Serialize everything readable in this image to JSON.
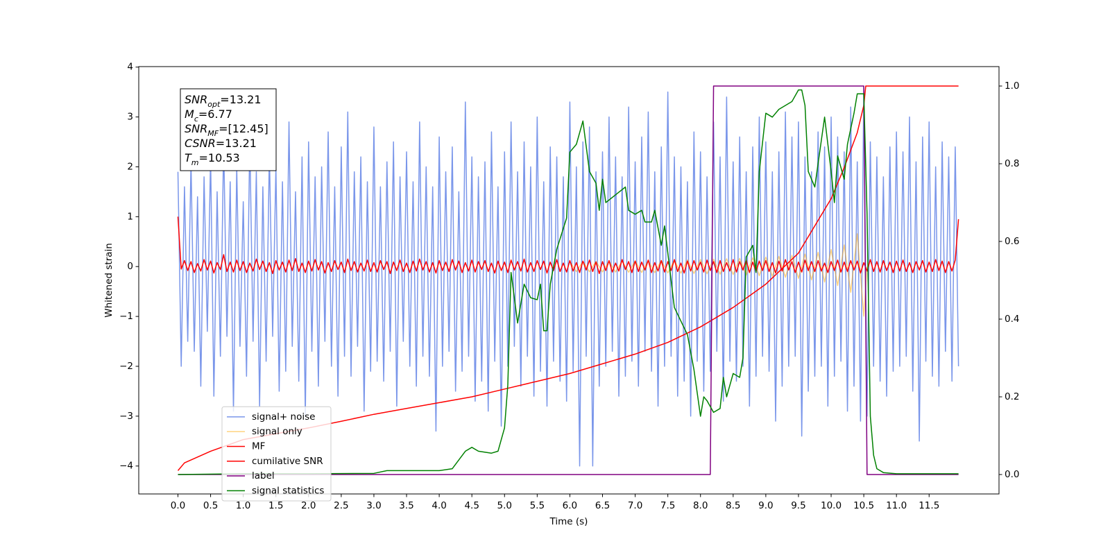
{
  "chart_data": {
    "type": "line",
    "xlabel": "Time (s)",
    "ylabel": "Whitened strain",
    "xlim": [
      -0.6,
      12.57
    ],
    "ylim": [
      -4.56,
      4.01
    ],
    "y2lim": [
      -0.05,
      1.05
    ],
    "xticks": [
      {
        "value": 0,
        "label": "0.0"
      },
      0.5,
      {
        "value": 1,
        "label": "1.0"
      },
      1.5,
      {
        "value": 2,
        "label": "2.0"
      },
      2.5,
      {
        "value": 3,
        "label": "3.0"
      },
      3.5,
      {
        "value": 4,
        "label": "4.0"
      },
      4.5,
      {
        "value": 5,
        "label": "5.0"
      },
      5.5,
      {
        "value": 6,
        "label": "6.0"
      },
      6.5,
      {
        "value": 7,
        "label": "7.0"
      },
      7.5,
      {
        "value": 8,
        "label": "8.0"
      },
      8.5,
      {
        "value": 9,
        "label": "9.0"
      },
      9.5,
      {
        "value": 10,
        "label": "10.0"
      },
      10.5,
      {
        "value": 11,
        "label": "11.0"
      },
      11.5
    ],
    "yticks": [
      {
        "value": -4,
        "label": "−4"
      },
      {
        "value": -3,
        "label": "−3"
      },
      {
        "value": -2,
        "label": "−2"
      },
      {
        "value": -1,
        "label": "−1"
      },
      0,
      1,
      2,
      3,
      4
    ],
    "y2ticks": [
      {
        "value": 0,
        "label": "0.0"
      },
      0.2,
      0.4,
      0.6,
      0.8,
      {
        "value": 1,
        "label": "1.0"
      }
    ],
    "legend": "lower left",
    "grid": false,
    "stats_box": [
      {
        "symbol": "SNR",
        "subscript": "opt",
        "text": "=13.21"
      },
      {
        "symbol": "M",
        "subscript": "c",
        "text": "=6.77"
      },
      {
        "symbol": "SNR",
        "subscript": "MF",
        "text": "=[12.45]"
      },
      {
        "symbol": "CSNR",
        "text": "=13.21"
      },
      {
        "symbol": "T",
        "subscript": "m",
        "text": "=10.53"
      }
    ],
    "x": [
      0,
      0.05,
      0.1,
      0.15,
      0.2,
      0.25,
      0.3,
      0.35,
      0.4,
      0.45,
      0.5,
      0.55,
      0.6,
      0.65,
      0.7,
      0.75,
      0.8,
      0.85,
      0.9,
      0.95,
      1,
      1.05,
      1.1,
      1.15,
      1.2,
      1.25,
      1.3,
      1.35,
      1.4,
      1.45,
      1.5,
      1.55,
      1.6,
      1.65,
      1.7,
      1.75,
      1.8,
      1.85,
      1.9,
      1.95,
      2,
      2.05,
      2.1,
      2.15,
      2.2,
      2.25,
      2.3,
      2.35,
      2.4,
      2.45,
      2.5,
      2.55,
      2.6,
      2.65,
      2.7,
      2.75,
      2.8,
      2.85,
      2.9,
      2.95,
      3,
      3.05,
      3.1,
      3.15,
      3.2,
      3.25,
      3.3,
      3.35,
      3.4,
      3.45,
      3.5,
      3.55,
      3.6,
      3.65,
      3.7,
      3.75,
      3.8,
      3.85,
      3.9,
      3.95,
      4,
      4.05,
      4.1,
      4.15,
      4.2,
      4.25,
      4.3,
      4.35,
      4.4,
      4.45,
      4.5,
      4.55,
      4.6,
      4.65,
      4.7,
      4.75,
      4.8,
      4.85,
      4.9,
      4.95,
      5,
      5.05,
      5.1,
      5.15,
      5.2,
      5.25,
      5.3,
      5.35,
      5.4,
      5.45,
      5.5,
      5.55,
      5.6,
      5.65,
      5.7,
      5.75,
      5.8,
      5.85,
      5.9,
      5.95,
      6,
      6.05,
      6.1,
      6.15,
      6.2,
      6.25,
      6.3,
      6.35,
      6.4,
      6.45,
      6.5,
      6.55,
      6.6,
      6.65,
      6.7,
      6.75,
      6.8,
      6.85,
      6.9,
      6.95,
      7,
      7.05,
      7.1,
      7.15,
      7.2,
      7.25,
      7.3,
      7.35,
      7.4,
      7.45,
      7.5,
      7.55,
      7.6,
      7.65,
      7.7,
      7.75,
      7.8,
      7.85,
      7.9,
      7.95,
      8,
      8.05,
      8.1,
      8.15,
      8.2,
      8.25,
      8.3,
      8.35,
      8.4,
      8.45,
      8.5,
      8.55,
      8.6,
      8.65,
      8.7,
      8.75,
      8.8,
      8.85,
      8.9,
      8.95,
      9,
      9.05,
      9.1,
      9.15,
      9.2,
      9.25,
      9.3,
      9.35,
      9.4,
      9.45,
      9.5,
      9.55,
      9.6,
      9.65,
      9.7,
      9.75,
      9.8,
      9.85,
      9.9,
      9.95,
      10,
      10.05,
      10.1,
      10.15,
      10.2,
      10.25,
      10.3,
      10.35,
      10.4,
      10.45,
      10.5,
      10.55,
      10.6,
      10.65,
      10.7,
      10.75,
      10.8,
      10.85,
      10.9,
      10.95,
      11,
      11.05,
      11.1,
      11.15,
      11.2,
      11.25,
      11.3,
      11.35,
      11.4,
      11.45,
      11.5,
      11.55,
      11.6,
      11.65,
      11.7,
      11.75,
      11.8,
      11.85,
      11.9,
      11.95
    ],
    "series": [
      {
        "name": "signal+ noise",
        "color": "#4169e1",
        "alpha": 0.7,
        "axis": "y",
        "values": [
          1.9,
          -2.0,
          1.6,
          -1.5,
          2.1,
          -1.7,
          1.4,
          -2.4,
          1.8,
          -1.3,
          2.2,
          -2.6,
          1.5,
          -1.8,
          2.5,
          -1.4,
          1.7,
          -2.9,
          2.0,
          -1.6,
          1.3,
          -2.2,
          2.6,
          -1.5,
          1.9,
          -2.8,
          1.6,
          -1.9,
          2.3,
          -1.4,
          2.0,
          -2.5,
          1.7,
          -2.1,
          2.9,
          -1.6,
          1.5,
          -2.3,
          2.2,
          -3.0,
          2.5,
          -1.7,
          1.8,
          -2.4,
          2.0,
          -1.5,
          2.7,
          -2.0,
          1.6,
          -2.6,
          2.4,
          -1.8,
          3.1,
          -2.2,
          1.9,
          -1.6,
          2.2,
          -2.9,
          1.7,
          -2.1,
          2.8,
          -1.9,
          1.6,
          -2.3,
          2.1,
          -1.7,
          2.5,
          -2.8,
          1.8,
          -1.5,
          2.3,
          -2.0,
          1.7,
          -2.4,
          2.9,
          -1.8,
          2.0,
          -2.2,
          1.6,
          -3.3,
          2.6,
          -2.0,
          1.9,
          -1.7,
          2.4,
          -2.5,
          1.5,
          -2.1,
          3.3,
          -1.8,
          2.2,
          -2.7,
          1.8,
          -2.3,
          2.1,
          -2.9,
          2.7,
          -1.9,
          1.6,
          -3.2,
          2.3,
          -2.0,
          2.9,
          -1.6,
          1.9,
          -2.4,
          2.5,
          -1.8,
          2.0,
          -2.6,
          3.0,
          -2.1,
          1.7,
          -2.8,
          2.4,
          -1.9,
          2.2,
          -2.3,
          1.8,
          -2.7,
          3.3,
          -2.1,
          2.0,
          -4.0,
          2.5,
          -1.8,
          2.8,
          -4.0,
          1.9,
          -2.4,
          2.3,
          -2.0,
          3.0,
          -1.7,
          2.2,
          -2.6,
          1.8,
          -2.2,
          3.2,
          -1.9,
          2.1,
          -2.4,
          2.6,
          -1.7,
          3.1,
          -2.1,
          1.9,
          -2.8,
          2.4,
          -2.0,
          3.5,
          -1.8,
          2.2,
          -2.6,
          2.0,
          -2.3,
          1.7,
          -3.0,
          2.7,
          -1.9,
          2.3,
          -2.5,
          1.8,
          -2.1,
          2.9,
          -1.7,
          2.2,
          -2.7,
          3.4,
          -1.9,
          2.1,
          -2.3,
          2.6,
          -2.0,
          1.9,
          -2.8,
          2.4,
          -2.2,
          3.0,
          -1.8,
          2.5,
          -2.1,
          1.9,
          -3.1,
          2.3,
          -2.4,
          3.1,
          -2.0,
          2.6,
          -1.8,
          2.9,
          -3.4,
          2.2,
          -2.5,
          1.9,
          -2.2,
          2.7,
          -2.0,
          2.4,
          -2.8,
          3.0,
          -2.2,
          2.6,
          -1.9,
          2.3,
          -2.9,
          3.2,
          -2.4,
          2.1,
          -3.1,
          3.6,
          -3.0,
          2.5,
          -2.0,
          2.2,
          -2.3,
          1.8,
          -2.6,
          2.4,
          -2.1,
          2.7,
          -2.0,
          2.3,
          -1.8,
          3.0,
          -2.5,
          2.1,
          -3.5,
          2.6,
          -1.9,
          2.9,
          -2.2,
          2.0,
          -2.4,
          2.5,
          -1.7,
          2.2,
          -2.3,
          2.4,
          -2.0
        ]
      },
      {
        "name": "signal only",
        "color": "#ffa500",
        "alpha": 0.5,
        "axis": "y",
        "x": [
          6,
          6.1,
          6.2,
          6.3,
          6.4,
          6.5,
          6.6,
          6.7,
          6.8,
          6.9,
          7,
          7.1,
          7.2,
          7.3,
          7.4,
          7.5,
          7.6,
          7.7,
          7.8,
          7.9,
          8,
          8.1,
          8.2,
          8.3,
          8.4,
          8.5,
          8.6,
          8.7,
          8.8,
          8.9,
          9,
          9.1,
          9.2,
          9.3,
          9.4,
          9.5,
          9.6,
          9.7,
          9.8,
          9.9,
          10,
          10.1,
          10.2,
          10.3,
          10.4,
          10.5,
          10.55
        ],
        "values": [
          0.1,
          -0.101,
          0.103,
          -0.104,
          0.106,
          -0.107,
          0.109,
          -0.11,
          0.112,
          -0.114,
          0.116,
          -0.118,
          0.12,
          -0.122,
          0.124,
          -0.127,
          0.129,
          -0.132,
          0.135,
          -0.138,
          0.141,
          -0.144,
          0.148,
          -0.152,
          0.156,
          -0.16,
          0.165,
          -0.17,
          0.176,
          -0.182,
          0.189,
          -0.196,
          0.204,
          -0.214,
          0.224,
          -0.236,
          0.25,
          -0.266,
          0.286,
          -0.31,
          0.34,
          -0.379,
          0.433,
          -0.515,
          0.657,
          -0.995,
          0
        ]
      },
      {
        "name": "MF",
        "color": "red",
        "axis": "y",
        "values": [
          1.0,
          -0.05,
          0.12,
          -0.08,
          0.1,
          -0.12,
          0.06,
          -0.09,
          0.14,
          -0.07,
          0.11,
          -0.13,
          0.08,
          -0.06,
          0.24,
          -0.1,
          0.09,
          -0.11,
          0.13,
          -0.08,
          0.1,
          -0.12,
          0.07,
          -0.09,
          0.15,
          -0.06,
          0.11,
          -0.1,
          0.08,
          -0.14,
          0.12,
          -0.07,
          0.09,
          -0.11,
          0.13,
          -0.08,
          0.16,
          -0.1,
          0.07,
          -0.12,
          0.11,
          -0.09,
          0.14,
          -0.07,
          0.1,
          -0.13,
          0.08,
          -0.1,
          0.12,
          -0.06,
          0.09,
          -0.12,
          0.15,
          -0.08,
          0.1,
          -0.11,
          0.07,
          -0.09,
          0.13,
          -0.1,
          0.08,
          -0.11,
          0.12,
          -0.06,
          0.1,
          -0.14,
          0.09,
          -0.08,
          0.13,
          -0.1,
          0.07,
          -0.12,
          0.11,
          -0.09,
          0.15,
          -0.07,
          0.1,
          -0.11,
          0.08,
          -0.13,
          0.12,
          -0.08,
          0.09,
          -0.1,
          0.14,
          -0.07,
          0.11,
          -0.12,
          0.08,
          -0.09,
          0.13,
          -0.11,
          0.1,
          -0.06,
          0.12,
          -0.1,
          0.07,
          -0.13,
          0.11,
          -0.08,
          0.09,
          -0.12,
          0.13,
          -0.07,
          0.1,
          -0.09,
          0.15,
          -0.11,
          0.08,
          -0.1,
          0.12,
          -0.06,
          0.11,
          -0.13,
          0.09,
          -0.08,
          0.14,
          -0.1,
          0.07,
          -0.11,
          0.12,
          -0.09,
          0.08,
          -0.12,
          0.11,
          -0.07,
          0.13,
          -0.1,
          0.09,
          -0.14,
          0.1,
          -0.08,
          0.12,
          -0.11,
          0.07,
          -0.09,
          0.14,
          -0.06,
          0.1,
          -0.12,
          0.11,
          -0.1,
          0.09,
          -0.07,
          0.13,
          -0.12,
          0.08,
          -0.09,
          0.12,
          -0.11,
          0.1,
          -0.08,
          0.14,
          -0.1,
          0.07,
          -0.13,
          0.11,
          -0.09,
          0.12,
          -0.07,
          0.09,
          -0.11,
          0.13,
          -0.08,
          0.1,
          -0.12,
          0.12,
          -0.1,
          0.08,
          -0.09,
          0.14,
          -0.11,
          0.1,
          -0.07,
          0.13,
          -0.12,
          0.09,
          -0.1,
          0.11,
          -0.08,
          0.12,
          -0.1,
          0.08,
          -0.13,
          0.11,
          -0.09,
          0.14,
          -0.07,
          0.1,
          -0.12,
          0.09,
          -0.11,
          0.13,
          -0.08,
          0.1,
          -0.1,
          0.12,
          -0.09,
          0.07,
          -0.12,
          0.1,
          -0.08,
          0.13,
          -0.11,
          0.09,
          -0.1,
          0.12,
          -0.07,
          0.11,
          -0.13,
          0.08,
          -0.09,
          0.14,
          -0.1,
          0.1,
          -0.11,
          0.12,
          -0.08,
          0.09,
          -0.12,
          0.11,
          -0.09,
          0.13,
          -0.1,
          0.08,
          -0.12,
          0.1,
          -0.07,
          0.12,
          -0.11,
          0.09,
          -0.1,
          0.14,
          -0.08,
          0.11,
          -0.12,
          0.1,
          -0.09,
          0.13,
          0.95
        ]
      },
      {
        "name": "cumilative SNR",
        "color": "red",
        "axis": "y2",
        "x": [
          0,
          0.1,
          0.5,
          1,
          1.5,
          2,
          2.5,
          3,
          3.5,
          4,
          4.5,
          5,
          5.5,
          6,
          6.5,
          7,
          7.5,
          8,
          8.5,
          9,
          9.5,
          10,
          10.2,
          10.4,
          10.5,
          10.53,
          11.95
        ],
        "values": [
          0.01,
          0.03,
          0.06,
          0.09,
          0.105,
          0.12,
          0.137,
          0.155,
          0.17,
          0.185,
          0.2,
          0.22,
          0.24,
          0.26,
          0.285,
          0.31,
          0.34,
          0.38,
          0.43,
          0.49,
          0.57,
          0.71,
          0.79,
          0.88,
          0.95,
          1.0,
          1.0
        ]
      },
      {
        "name": "label",
        "color": "purple",
        "axis": "y2",
        "x": [
          0,
          8.15,
          8.2,
          10.5,
          10.55,
          11.95
        ],
        "values": [
          0,
          0,
          1,
          1,
          0,
          0
        ]
      },
      {
        "name": "signal statistics",
        "color": "green",
        "axis": "y2",
        "x": [
          0,
          1,
          2,
          3,
          3.2,
          3.5,
          4,
          4.2,
          4.4,
          4.5,
          4.6,
          4.8,
          4.9,
          5.0,
          5.05,
          5.1,
          5.2,
          5.3,
          5.4,
          5.5,
          5.55,
          5.6,
          5.65,
          5.7,
          5.8,
          5.95,
          6.0,
          6.1,
          6.2,
          6.3,
          6.4,
          6.45,
          6.5,
          6.55,
          6.7,
          6.85,
          6.9,
          7.0,
          7.1,
          7.15,
          7.25,
          7.3,
          7.4,
          7.45,
          7.55,
          7.6,
          7.8,
          7.9,
          8.0,
          8.05,
          8.1,
          8.2,
          8.3,
          8.35,
          8.4,
          8.5,
          8.6,
          8.65,
          8.7,
          8.8,
          8.85,
          8.9,
          9.0,
          9.1,
          9.2,
          9.3,
          9.4,
          9.5,
          9.55,
          9.6,
          9.65,
          9.75,
          9.9,
          10.0,
          10.05,
          10.1,
          10.2,
          10.25,
          10.35,
          10.4,
          10.5,
          10.55,
          10.6,
          10.65,
          10.7,
          10.8,
          11.0,
          11.95
        ],
        "values": [
          0,
          0.002,
          0.002,
          0.003,
          0.01,
          0.01,
          0.01,
          0.015,
          0.06,
          0.07,
          0.06,
          0.055,
          0.06,
          0.12,
          0.23,
          0.52,
          0.39,
          0.49,
          0.455,
          0.45,
          0.49,
          0.37,
          0.37,
          0.49,
          0.58,
          0.66,
          0.83,
          0.85,
          0.91,
          0.78,
          0.75,
          0.68,
          0.76,
          0.7,
          0.72,
          0.74,
          0.68,
          0.67,
          0.68,
          0.65,
          0.65,
          0.68,
          0.59,
          0.64,
          0.5,
          0.43,
          0.36,
          0.27,
          0.15,
          0.2,
          0.19,
          0.16,
          0.17,
          0.25,
          0.2,
          0.26,
          0.25,
          0.3,
          0.56,
          0.59,
          0.52,
          0.78,
          0.93,
          0.92,
          0.94,
          0.95,
          0.96,
          0.99,
          0.99,
          0.95,
          0.78,
          0.74,
          0.92,
          0.78,
          0.7,
          0.82,
          0.76,
          0.85,
          0.93,
          0.98,
          0.98,
          0.67,
          0.15,
          0.05,
          0.015,
          0.005,
          0.002,
          0.002
        ]
      }
    ]
  }
}
